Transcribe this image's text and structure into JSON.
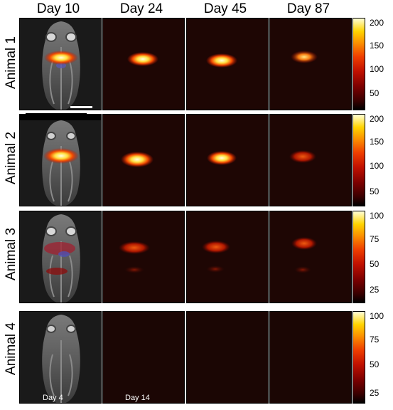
{
  "columns": [
    "Day 10",
    "Day 24",
    "Day 45",
    "Day 87"
  ],
  "rows": [
    "Animal 1",
    "Animal 2",
    "Animal 3",
    "Animal 4"
  ],
  "colorbars": [
    {
      "ticks": [
        "200",
        "150",
        "100",
        "50"
      ]
    },
    {
      "ticks": [
        "200",
        "150",
        "100",
        "50"
      ]
    },
    {
      "ticks": [
        "100",
        "75",
        "50",
        "25"
      ]
    },
    {
      "ticks": [
        "100",
        "75",
        "50",
        "25"
      ]
    }
  ],
  "panel_labels": {
    "day4": "Day 4",
    "day14": "Day 14"
  },
  "colormap": [
    "#000000",
    "#7a0000",
    "#ef3e00",
    "#ffd400",
    "#ffffd8"
  ]
}
